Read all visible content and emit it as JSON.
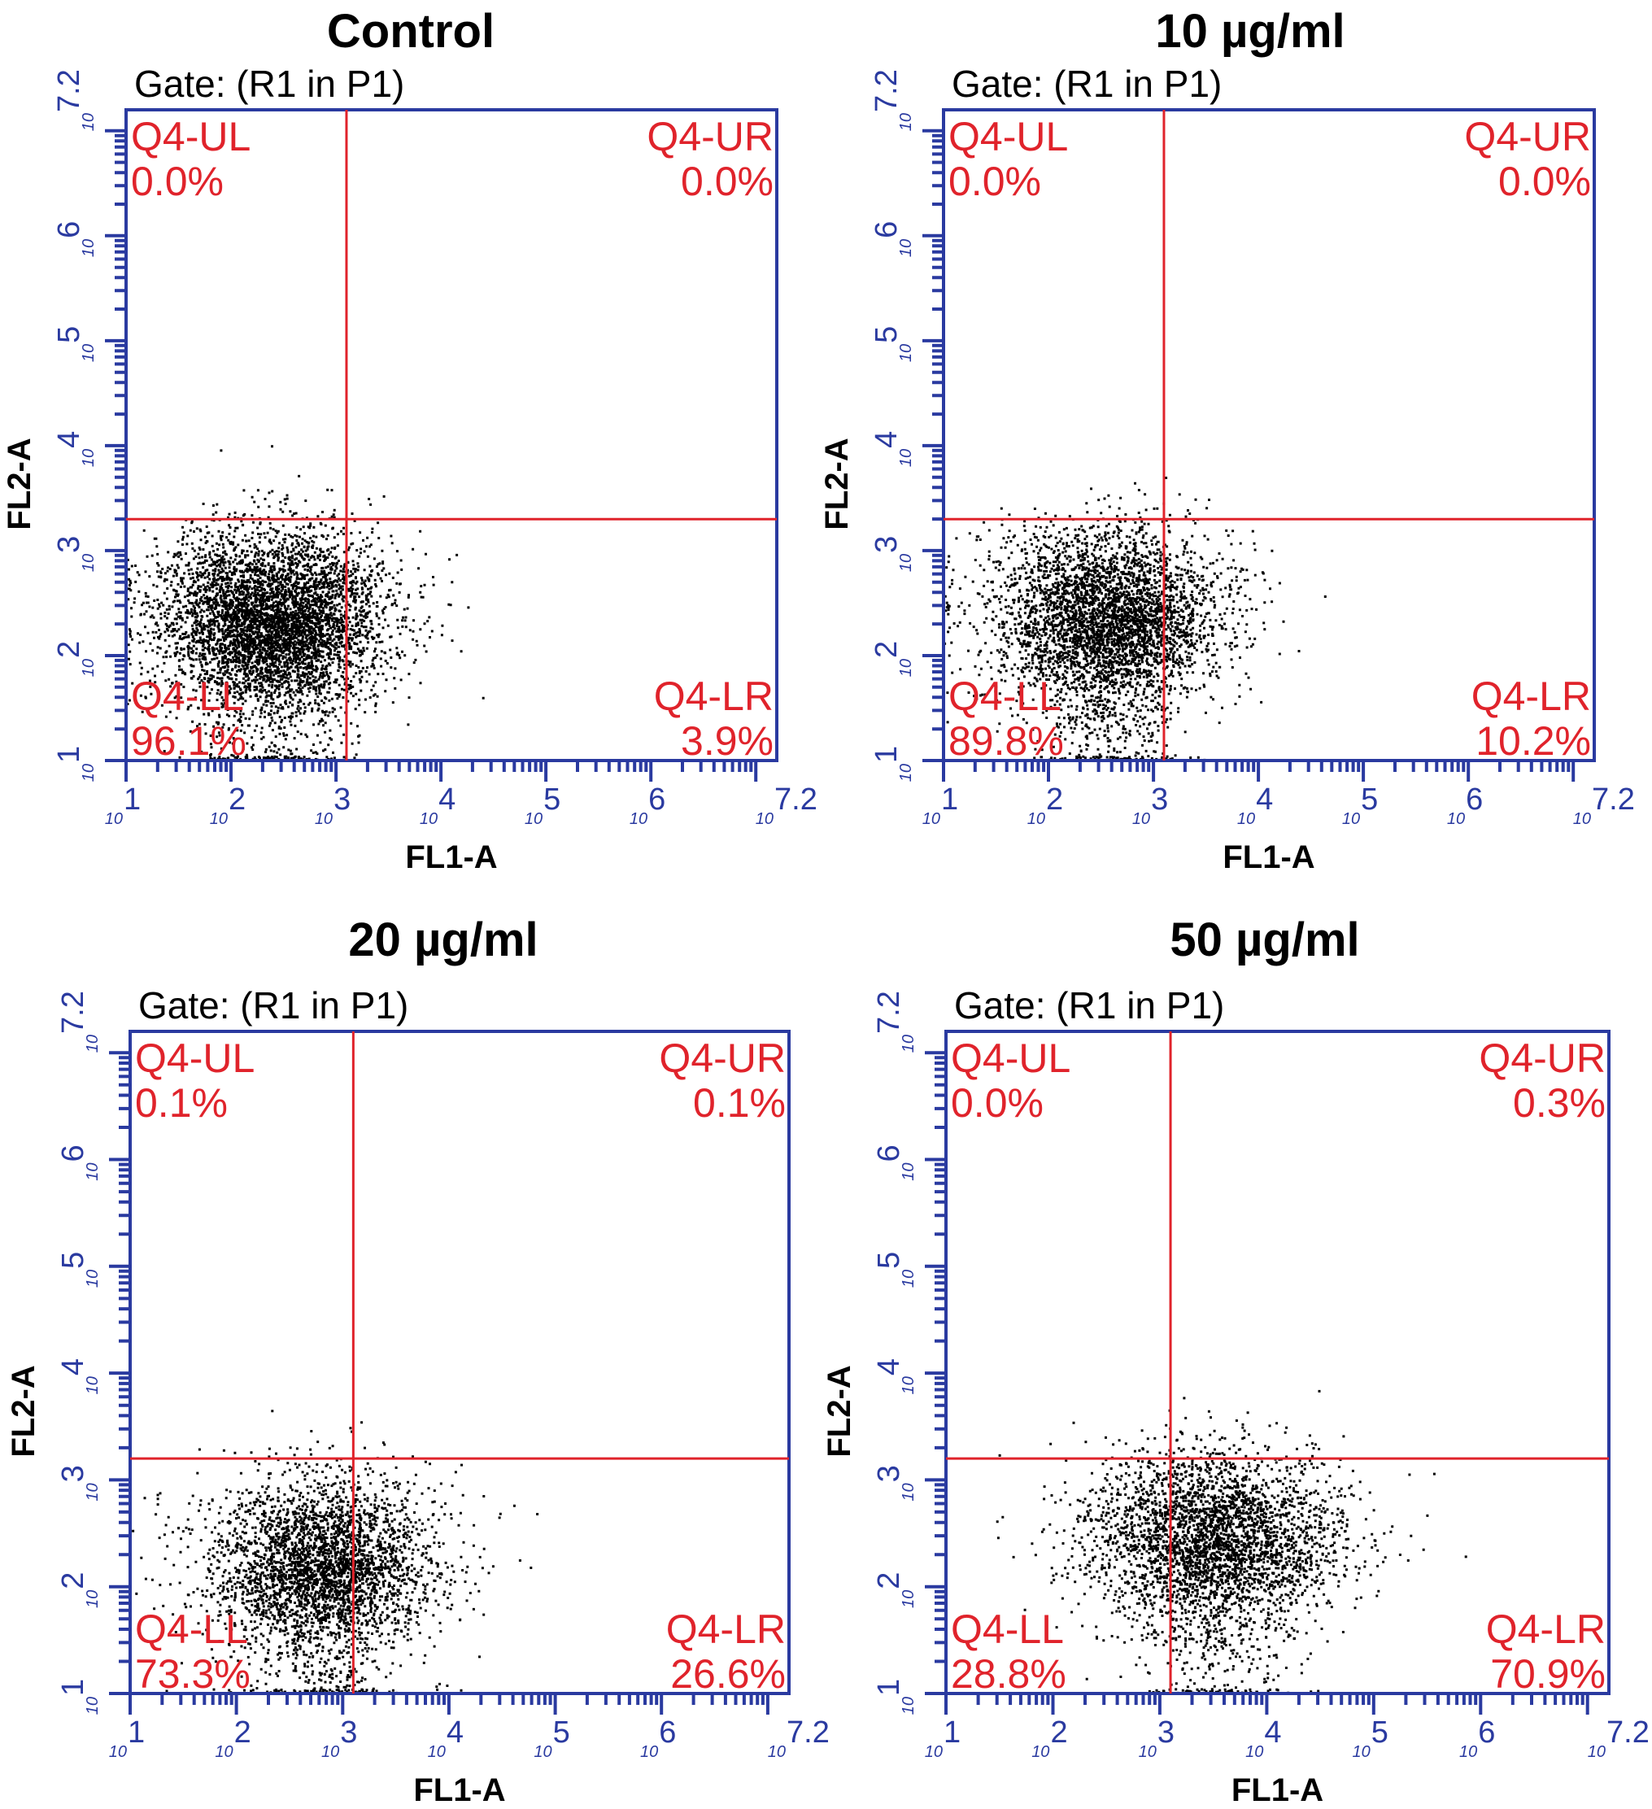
{
  "chart_data": [
    {
      "type": "scatter",
      "title": "Control",
      "gate": "Gate: (R1 in P1)",
      "xlabel": "FL1-A",
      "ylabel": "FL2-A",
      "xscale": "log",
      "yscale": "log",
      "xlim": [
        1,
        7.2
      ],
      "ylim": [
        1,
        7.2
      ],
      "tick_labels": [
        "1",
        "2",
        "3",
        "4",
        "5",
        "6",
        "7.2"
      ],
      "tick_base": "10",
      "quadrant_divider": {
        "x": 3.1,
        "y": 3.3
      },
      "quadrants": [
        {
          "label": "Q4-UL",
          "value": "0.0%",
          "pos": "upper-left"
        },
        {
          "label": "Q4-UR",
          "value": "0.0%",
          "pos": "upper-right"
        },
        {
          "label": "Q4-LL",
          "value": "96.1%",
          "pos": "lower-left"
        },
        {
          "label": "Q4-LR",
          "value": "3.9%",
          "pos": "lower-right"
        }
      ],
      "cluster": {
        "cx": 2.4,
        "cy": 2.4,
        "sx": 0.55,
        "sy": 0.4,
        "seed": 11,
        "n": 5200
      }
    },
    {
      "type": "scatter",
      "title": "10 µg/ml",
      "gate": "Gate: (R1 in P1)",
      "xlabel": "FL1-A",
      "ylabel": "FL2-A",
      "xscale": "log",
      "yscale": "log",
      "xlim": [
        1,
        7.2
      ],
      "ylim": [
        1,
        7.2
      ],
      "tick_labels": [
        "1",
        "2",
        "3",
        "4",
        "5",
        "6",
        "7.2"
      ],
      "tick_base": "10",
      "quadrant_divider": {
        "x": 3.1,
        "y": 3.3
      },
      "quadrants": [
        {
          "label": "Q4-UL",
          "value": "0.0%",
          "pos": "upper-left"
        },
        {
          "label": "Q4-UR",
          "value": "0.0%",
          "pos": "upper-right"
        },
        {
          "label": "Q4-LL",
          "value": "89.8%",
          "pos": "lower-left"
        },
        {
          "label": "Q4-LR",
          "value": "10.2%",
          "pos": "lower-right"
        }
      ],
      "cluster": {
        "cx": 2.55,
        "cy": 2.4,
        "sx": 0.55,
        "sy": 0.4,
        "seed": 23,
        "n": 4200
      }
    },
    {
      "type": "scatter",
      "title": "20 µg/ml",
      "gate": "Gate: (R1 in P1)",
      "xlabel": "FL1-A",
      "ylabel": "FL2-A",
      "xscale": "log",
      "yscale": "log",
      "xlim": [
        1,
        7.2
      ],
      "ylim": [
        1,
        7.2
      ],
      "tick_labels": [
        "1",
        "2",
        "3",
        "4",
        "5",
        "6",
        "7.2"
      ],
      "tick_base": "10",
      "quadrant_divider": {
        "x": 3.1,
        "y": 3.2
      },
      "quadrants": [
        {
          "label": "Q4-UL",
          "value": "0.1%",
          "pos": "upper-left"
        },
        {
          "label": "Q4-UR",
          "value": "0.1%",
          "pos": "upper-right"
        },
        {
          "label": "Q4-LL",
          "value": "73.3%",
          "pos": "lower-left"
        },
        {
          "label": "Q4-LR",
          "value": "26.6%",
          "pos": "lower-right"
        }
      ],
      "cluster": {
        "cx": 2.8,
        "cy": 2.25,
        "sx": 0.55,
        "sy": 0.4,
        "seed": 37,
        "n": 3600
      }
    },
    {
      "type": "scatter",
      "title": "50 µg/ml",
      "gate": "Gate: (R1 in P1)",
      "xlabel": "FL1-A",
      "ylabel": "FL2-A",
      "xscale": "log",
      "yscale": "log",
      "xlim": [
        1,
        7.2
      ],
      "ylim": [
        1,
        7.2
      ],
      "tick_labels": [
        "1",
        "2",
        "3",
        "4",
        "5",
        "6",
        "7.2"
      ],
      "tick_base": "10",
      "quadrant_divider": {
        "x": 3.1,
        "y": 3.2
      },
      "quadrants": [
        {
          "label": "Q4-UL",
          "value": "0.0%",
          "pos": "upper-left"
        },
        {
          "label": "Q4-UR",
          "value": "0.3%",
          "pos": "upper-right"
        },
        {
          "label": "Q4-LL",
          "value": "28.8%",
          "pos": "lower-left"
        },
        {
          "label": "Q4-LR",
          "value": "70.9%",
          "pos": "lower-right"
        }
      ],
      "cluster": {
        "cx": 3.5,
        "cy": 2.5,
        "sx": 0.6,
        "sy": 0.4,
        "seed": 53,
        "n": 3600
      }
    }
  ]
}
